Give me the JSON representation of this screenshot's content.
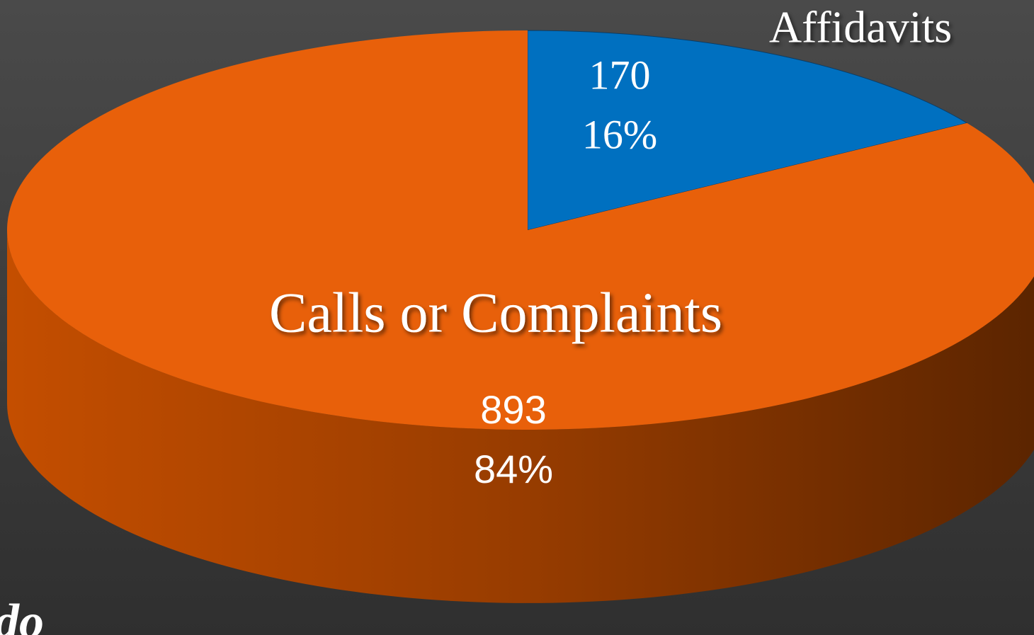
{
  "chart_data": {
    "type": "pie",
    "categories": [
      "Affidavits",
      "Calls or Complaints"
    ],
    "values": [
      170,
      893
    ],
    "percent_labels": [
      "16%",
      "84%"
    ],
    "colors": [
      "#0070c0",
      "#e8600a"
    ],
    "annotation": "do"
  }
}
